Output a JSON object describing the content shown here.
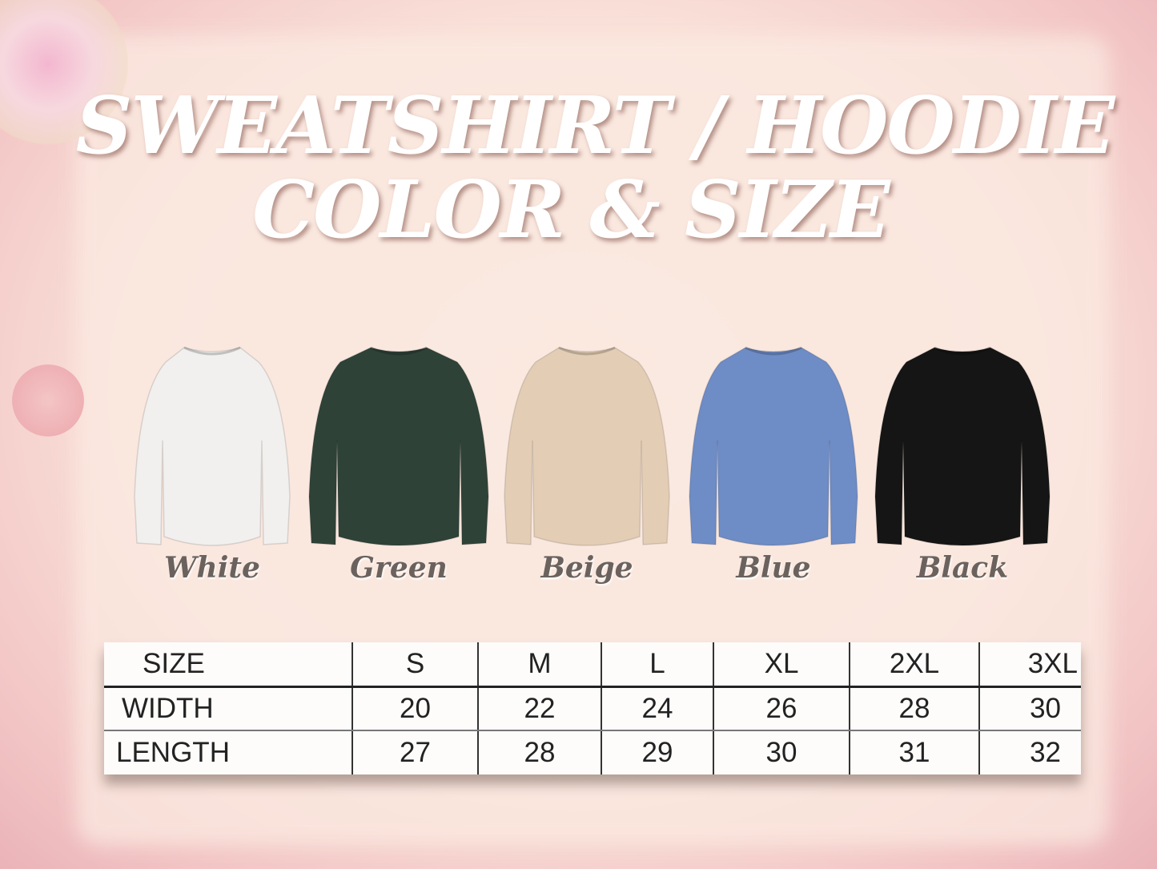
{
  "title": {
    "line1": "SWEATSHIRT / HOODIE",
    "line2": "COLOR & SIZE"
  },
  "colors": [
    {
      "label": "White",
      "hex": "#f1f0ee"
    },
    {
      "label": "Green",
      "hex": "#2f4238"
    },
    {
      "label": "Beige",
      "hex": "#e3cdb5"
    },
    {
      "label": "Blue",
      "hex": "#6e8cc6"
    },
    {
      "label": "Black",
      "hex": "#151515"
    }
  ],
  "size_table": {
    "header": [
      "SIZE",
      "S",
      "M",
      "L",
      "XL",
      "2XL",
      "3XL"
    ],
    "rows": [
      [
        "WIDTH",
        "20",
        "22",
        "24",
        "26",
        "28",
        "30"
      ],
      [
        "LENGTH",
        "27",
        "28",
        "29",
        "30",
        "31",
        "32"
      ]
    ]
  }
}
